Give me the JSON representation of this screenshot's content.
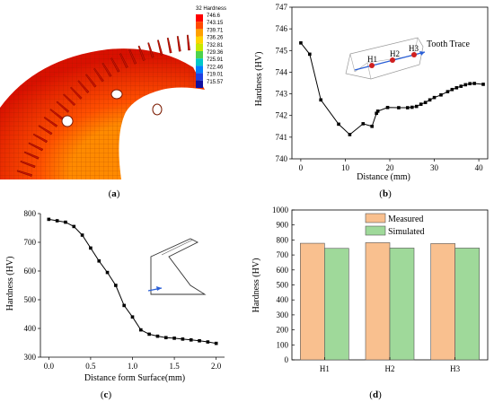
{
  "panel_labels": {
    "a": "a",
    "b": "b",
    "c": "c",
    "d": "d"
  },
  "panel_a": {
    "colorbar_title": "32 Hardness",
    "colorbar_values": [
      "746.6",
      "743.15",
      "739.71",
      "736.26",
      "732.81",
      "729.36",
      "725.91",
      "722.46",
      "719.01",
      "715.57"
    ],
    "colors": [
      "#ff0000",
      "#ff4a00",
      "#ffa000",
      "#ffd400",
      "#c8e800",
      "#4dd24d",
      "#00c8c8",
      "#0080ff",
      "#2040e0",
      "#1010a0"
    ]
  },
  "chart_data": [
    {
      "id": "b",
      "type": "line",
      "xlabel": "Distance (mm)",
      "ylabel": "Hardness (HV)",
      "xlim": [
        -2,
        42
      ],
      "ylim": [
        740,
        747
      ],
      "xticks": [
        0,
        10,
        20,
        30,
        40
      ],
      "yticks": [
        740,
        741,
        742,
        743,
        744,
        745,
        746,
        747
      ],
      "x": [
        0,
        2,
        4.5,
        8.5,
        11,
        14,
        16,
        17,
        17.3,
        19.5,
        22,
        24,
        25,
        26,
        27,
        28,
        29,
        30,
        31.5,
        33,
        34,
        35,
        36,
        37,
        38,
        39,
        41
      ],
      "y": [
        745.35,
        744.83,
        742.72,
        741.6,
        741.12,
        741.62,
        741.5,
        742.1,
        742.2,
        742.37,
        742.36,
        742.36,
        742.38,
        742.42,
        742.52,
        742.6,
        742.72,
        742.83,
        742.95,
        743.1,
        743.2,
        743.28,
        743.35,
        743.42,
        743.47,
        743.48,
        743.44
      ],
      "annotations": {
        "tooth_trace": "Tooth Trace",
        "points": [
          "H1",
          "H2",
          "H3"
        ]
      }
    },
    {
      "id": "c",
      "type": "line",
      "xlabel": "Distance form Surface(mm)",
      "ylabel": "Hardness (HV)",
      "xlim": [
        -0.1,
        2.1
      ],
      "ylim": [
        300,
        800
      ],
      "xticks": [
        "0.0",
        "0.5",
        "1.0",
        "1.5",
        "2.0"
      ],
      "yticks": [
        300,
        400,
        500,
        600,
        700,
        800
      ],
      "x": [
        0,
        0.1,
        0.2,
        0.3,
        0.4,
        0.5,
        0.6,
        0.7,
        0.8,
        0.9,
        1.0,
        1.1,
        1.2,
        1.3,
        1.4,
        1.5,
        1.6,
        1.7,
        1.8,
        1.9,
        2.0
      ],
      "y": [
        780,
        775,
        770,
        755,
        725,
        680,
        635,
        595,
        550,
        480,
        440,
        395,
        380,
        373,
        368,
        366,
        363,
        360,
        357,
        353,
        348
      ]
    },
    {
      "id": "d",
      "type": "bar",
      "categories": [
        "H1",
        "H2",
        "H3"
      ],
      "series": [
        {
          "name": "Measured",
          "values": [
            778,
            782,
            776
          ],
          "color": "#f9c08f"
        },
        {
          "name": "Simulated",
          "values": [
            744,
            746,
            746
          ],
          "color": "#9fd99a"
        }
      ],
      "ylabel": "Hardness (HV)",
      "ylim": [
        0,
        1000
      ],
      "yticks": [
        0,
        100,
        200,
        300,
        400,
        500,
        600,
        700,
        800,
        900,
        1000
      ],
      "legend": "top-left"
    }
  ]
}
